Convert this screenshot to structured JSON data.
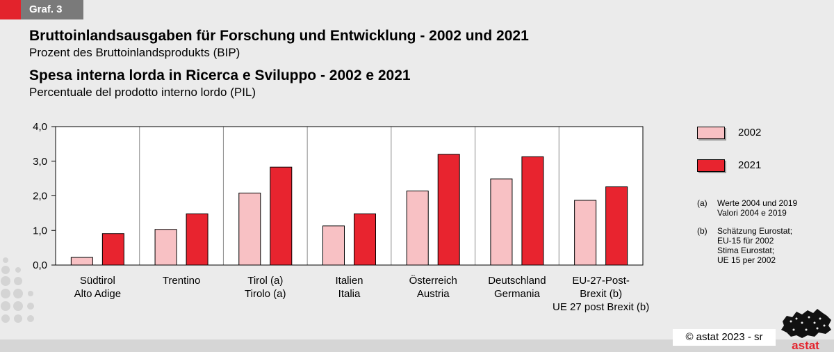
{
  "header": {
    "tag": "Graf. 3",
    "title_de": "Bruttoinlandsausgaben für Forschung und Entwicklung - 2002 und 2021",
    "subtitle_de": "Prozent des Bruttoinlandsprodukts (BIP)",
    "title_it": "Spesa interna lorda in Ricerca e Sviluppo - 2002 e 2021",
    "subtitle_it": "Percentuale del prodotto interno lordo (PIL)"
  },
  "colors": {
    "series_2002": "#f8c1c4",
    "series_2021": "#e8242f",
    "accent": "#e3232c"
  },
  "chart_data": {
    "type": "bar",
    "title": "Bruttoinlandsausgaben für Forschung und Entwicklung - 2002 und 2021",
    "ylabel": "",
    "xlabel": "",
    "ylim": [
      0,
      4
    ],
    "yticks": [
      "0,0",
      "1,0",
      "2,0",
      "3,0",
      "4,0"
    ],
    "categories": [
      [
        "Südtirol",
        "Alto Adige"
      ],
      [
        "Trentino"
      ],
      [
        "Tirol (a)",
        "Tirolo (a)"
      ],
      [
        "Italien",
        "Italia"
      ],
      [
        "Österreich",
        "Austria"
      ],
      [
        "Deutschland",
        "Germania"
      ],
      [
        "EU-27-Post-",
        "Brexit (b)",
        "UE 27 post Brexit (b)"
      ]
    ],
    "series": [
      {
        "name": "2002",
        "values": [
          0.22,
          1.03,
          2.08,
          1.13,
          2.14,
          2.49,
          1.87
        ]
      },
      {
        "name": "2021",
        "values": [
          0.91,
          1.48,
          2.83,
          1.48,
          3.2,
          3.13,
          2.26
        ]
      }
    ],
    "grid": true
  },
  "legend": {
    "items": [
      {
        "label": "2002"
      },
      {
        "label": "2021"
      }
    ]
  },
  "notes": {
    "a_marker": "(a)",
    "a_line1": "Werte 2004 und 2019",
    "a_line2": "Valori 2004 e 2019",
    "b_marker": "(b)",
    "b_line1": "Schätzung Eurostat;",
    "b_line2": "EU-15 für 2002",
    "b_line3": "Stima Eurostat;",
    "b_line4": "UE 15 per 2002"
  },
  "footer": {
    "copyright": "©  astat 2023 - sr",
    "logo_text": "astat"
  }
}
